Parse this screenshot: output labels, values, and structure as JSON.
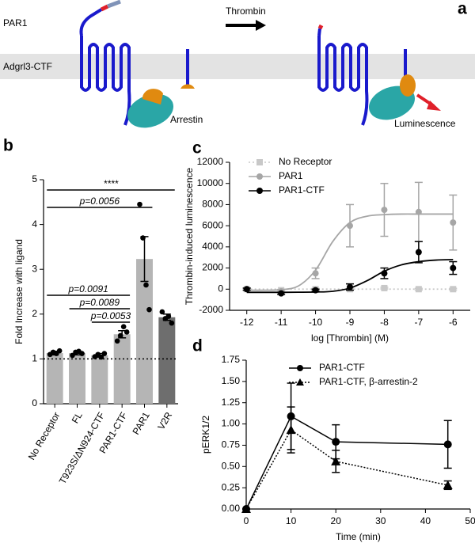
{
  "panel_labels": [
    "a",
    "b",
    "c",
    "d"
  ],
  "diagram": {
    "receptor": "PAR1",
    "ligand": "Thrombin",
    "membrane": "Adgrl3-CTF",
    "adaptor": "Arrestin",
    "readout": "Luminescence"
  },
  "chart_data": [
    {
      "type": "bar",
      "ylabel": "Fold Increase with ligand",
      "categories": [
        "No Receptor",
        "FL",
        "T923S/ΔN924-CTF",
        "PAR1-CTF",
        "PAR1",
        "V2R"
      ],
      "values": [
        1.13,
        1.13,
        1.08,
        1.55,
        3.23,
        1.93
      ],
      "errors": [
        0.04,
        0.04,
        0.04,
        0.08,
        0.5,
        0.07
      ],
      "points": [
        [
          1.1,
          1.15,
          1.12,
          1.18
        ],
        [
          1.08,
          1.15,
          1.17,
          1.12
        ],
        [
          1.05,
          1.1,
          1.04,
          1.12
        ],
        [
          1.4,
          1.52,
          1.72,
          1.6
        ],
        [
          4.45,
          3.7,
          2.65,
          2.1
        ],
        [
          2.05,
          1.9,
          1.95,
          1.8
        ]
      ],
      "colors": [
        "#b5b5b5",
        "#b5b5b5",
        "#b5b5b5",
        "#b5b5b5",
        "#b5b5b5",
        "#6e6e6e"
      ],
      "reference_line": 1,
      "annotations": [
        {
          "text": "****",
          "from": 0,
          "to": 5
        },
        {
          "text": "p=0.0056",
          "from": 0,
          "to": 4
        },
        {
          "text": "p=0.0091",
          "from": 0,
          "to": 3
        },
        {
          "text": "p=0.0089",
          "from": 1,
          "to": 3
        },
        {
          "text": "p=0.0053",
          "from": 2,
          "to": 3
        }
      ],
      "ylim": [
        0,
        5
      ],
      "yticks": [
        0,
        1,
        2,
        3,
        4,
        5
      ]
    },
    {
      "type": "scatter",
      "xlabel": "log [Thrombin] (M)",
      "ylabel": "Thrombin-induced luminescence",
      "x": [
        -12,
        -11,
        -10,
        -9,
        -8,
        -7,
        -6
      ],
      "curve_x": [
        -12,
        -11.5,
        -11,
        -10.5,
        -10,
        -9.5,
        -9,
        -8.5,
        -8,
        -7.5,
        -7,
        -6.5,
        -6
      ],
      "series": [
        {
          "name": "No Receptor",
          "color": "#c8c8c8",
          "marker": "square",
          "dash": "2,3",
          "values": [
            0,
            -100,
            0,
            0,
            100,
            0,
            0
          ],
          "errors": [
            80,
            80,
            80,
            80,
            80,
            80,
            80
          ],
          "curve": [
            0,
            0,
            0,
            0,
            0,
            0,
            0,
            0,
            0,
            0,
            0,
            0,
            0
          ]
        },
        {
          "name": "PAR1",
          "color": "#a6a6a6",
          "marker": "circle",
          "dash": "none",
          "values": [
            0,
            -200,
            1500,
            6000,
            7500,
            7300,
            6300
          ],
          "errors": [
            100,
            150,
            500,
            2000,
            2500,
            2800,
            2600
          ],
          "curve": [
            -100,
            -100,
            -50,
            300,
            1800,
            4500,
            6300,
            6900,
            7050,
            7100,
            7100,
            7100,
            7100
          ]
        },
        {
          "name": "PAR1-CTF",
          "color": "#000000",
          "marker": "circle",
          "dash": "none",
          "values": [
            0,
            -400,
            -100,
            200,
            1500,
            3500,
            2000
          ],
          "errors": [
            100,
            100,
            100,
            300,
            500,
            1000,
            600
          ],
          "curve": [
            -300,
            -300,
            -300,
            -290,
            -270,
            -200,
            100,
            800,
            1700,
            2300,
            2600,
            2750,
            2800
          ]
        }
      ],
      "legend": "upper left",
      "xlim": [
        -12.5,
        -5.5
      ],
      "xticks": [
        -12,
        -11,
        -10,
        -9,
        -8,
        -7,
        -6
      ],
      "ylim": [
        -2000,
        12000
      ],
      "yticks": [
        -2000,
        0,
        2000,
        4000,
        6000,
        8000,
        10000,
        12000
      ]
    },
    {
      "type": "line",
      "xlabel": "Time (min)",
      "ylabel": "pERK1/2",
      "x": [
        0,
        10,
        20,
        45
      ],
      "series": [
        {
          "name": "PAR1-CTF",
          "color": "#000000",
          "marker": "circle",
          "dash": "none",
          "values": [
            0,
            1.09,
            0.79,
            0.76
          ],
          "errors": [
            0,
            0.39,
            0.2,
            0.28
          ]
        },
        {
          "name": "PAR1-CTF, β-arrestin-2",
          "color": "#000000",
          "marker": "triangle",
          "dash": "2,2",
          "values": [
            0,
            0.93,
            0.56,
            0.28
          ],
          "errors": [
            0,
            0.27,
            0.13,
            0.05
          ]
        }
      ],
      "legend": "upper right",
      "xlim": [
        0,
        50
      ],
      "xticks": [
        0,
        10,
        20,
        30,
        40,
        50
      ],
      "ylim": [
        0,
        1.75
      ],
      "yticks": [
        {
          "value": 0,
          "label": "0.00"
        },
        {
          "value": 0.25,
          "label": "0.25"
        },
        {
          "value": 0.5,
          "label": "0.50"
        },
        {
          "value": 0.75,
          "label": "0.75"
        },
        {
          "value": 1,
          "label": "1.00"
        },
        {
          "value": 1.25,
          "label": "1.25"
        },
        {
          "value": 1.5,
          "label": "1.50"
        },
        {
          "value": 1.75,
          "label": "1.75"
        }
      ]
    }
  ]
}
